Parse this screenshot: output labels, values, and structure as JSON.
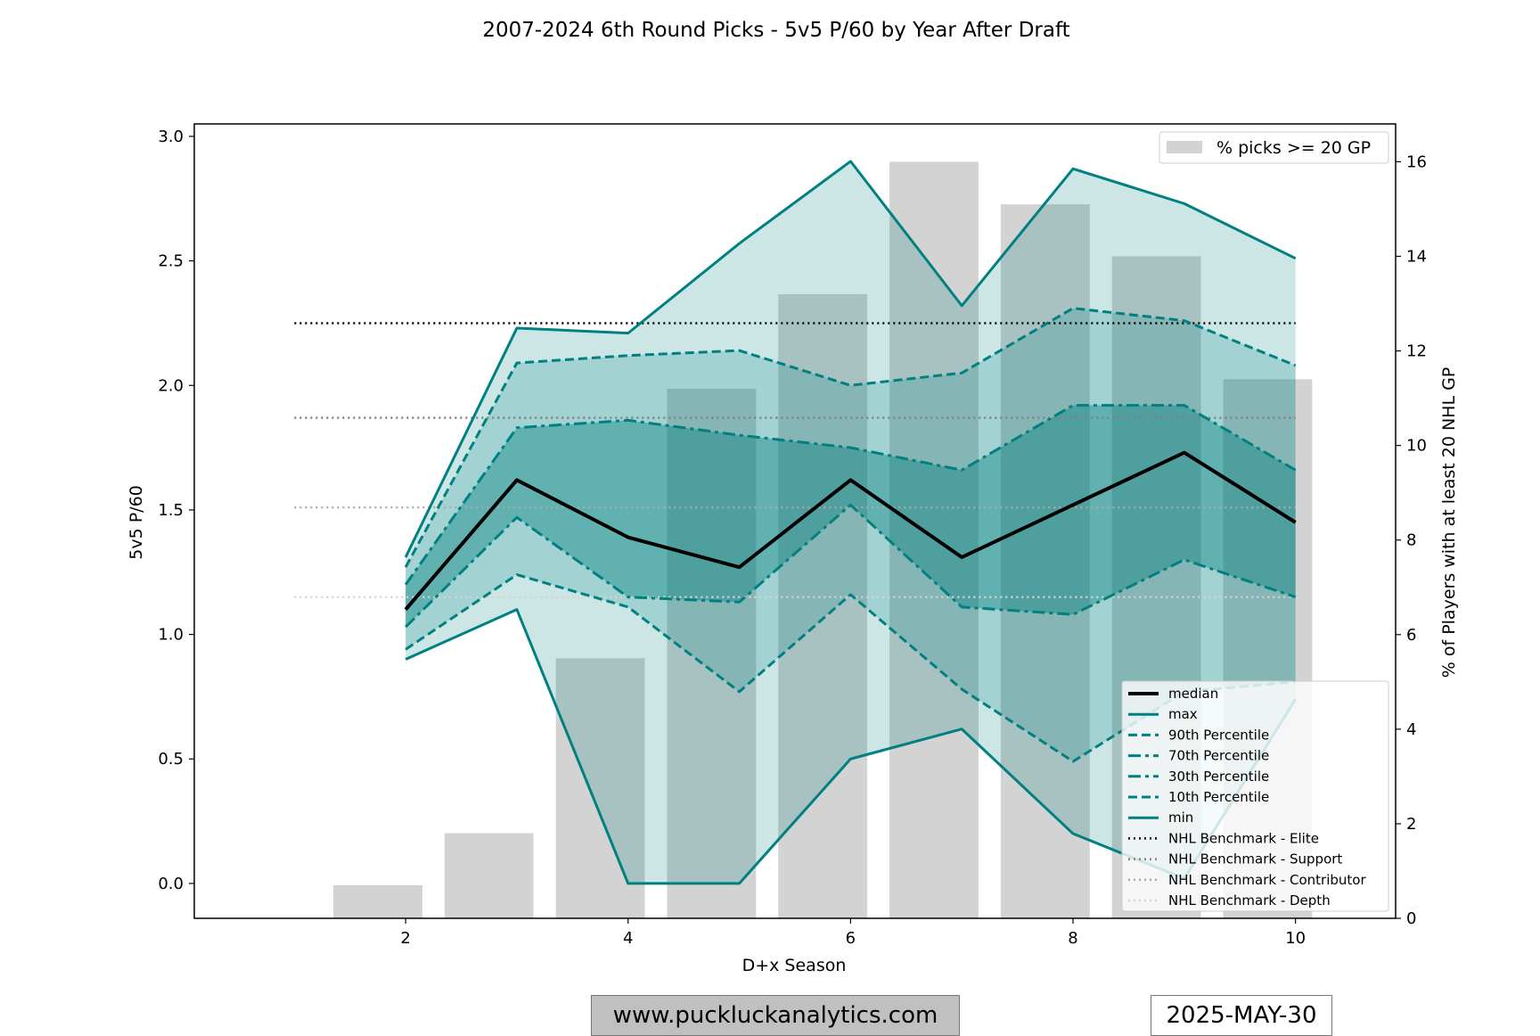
{
  "chart_data": {
    "type": "line",
    "title": "2007-2024 6th Round Picks - 5v5 P/60 by Year After Draft",
    "xlabel": "D+x Season",
    "ylabel": "5v5 P/60",
    "y2label": "% of Players with at least 20 NHL GP",
    "xlim": [
      0.1,
      10.9
    ],
    "ylim": [
      -0.14,
      3.05
    ],
    "y2lim": [
      0,
      16.8
    ],
    "xticks": [
      2,
      4,
      6,
      8,
      10
    ],
    "yticks": [
      0.0,
      0.5,
      1.0,
      1.5,
      2.0,
      2.5,
      3.0
    ],
    "y2ticks": [
      0,
      2,
      4,
      6,
      8,
      10,
      12,
      14,
      16
    ],
    "x": [
      2,
      3,
      4,
      5,
      6,
      7,
      8,
      9,
      10
    ],
    "series": [
      {
        "name": "median",
        "values": [
          1.1,
          1.62,
          1.39,
          1.27,
          1.62,
          1.31,
          1.52,
          1.73,
          1.45
        ],
        "color": "#000000",
        "style": "solid",
        "width": 4
      },
      {
        "name": "max",
        "values": [
          1.31,
          2.23,
          2.21,
          2.57,
          2.9,
          2.32,
          2.87,
          2.73,
          2.51
        ],
        "color": "#008080",
        "style": "solid",
        "width": 3
      },
      {
        "name": "90th Percentile",
        "values": [
          1.27,
          2.09,
          2.12,
          2.14,
          2.0,
          2.05,
          2.31,
          2.26,
          2.08
        ],
        "color": "#008080",
        "style": "dashed",
        "width": 3
      },
      {
        "name": "70th Percentile",
        "values": [
          1.2,
          1.83,
          1.86,
          1.8,
          1.75,
          1.66,
          1.92,
          1.92,
          1.66
        ],
        "color": "#008080",
        "style": "dashdot",
        "width": 3
      },
      {
        "name": "30th Percentile",
        "values": [
          1.03,
          1.47,
          1.15,
          1.13,
          1.52,
          1.11,
          1.08,
          1.3,
          1.15
        ],
        "color": "#008080",
        "style": "dashdot",
        "width": 3
      },
      {
        "name": "10th Percentile",
        "values": [
          0.94,
          1.24,
          1.11,
          0.77,
          1.16,
          0.78,
          0.49,
          0.77,
          0.81
        ],
        "color": "#008080",
        "style": "dashed",
        "width": 3
      },
      {
        "name": "min",
        "values": [
          0.9,
          1.1,
          0.0,
          0.0,
          0.5,
          0.62,
          0.2,
          0.02,
          0.74
        ],
        "color": "#008080",
        "style": "solid",
        "width": 3
      }
    ],
    "bands": [
      {
        "lower": "min",
        "upper": "max",
        "color": "#008080",
        "opacity": 0.2
      },
      {
        "lower": "10th Percentile",
        "upper": "90th Percentile",
        "color": "#008080",
        "opacity": 0.2
      },
      {
        "lower": "30th Percentile",
        "upper": "70th Percentile",
        "color": "#008080",
        "opacity": 0.4
      }
    ],
    "benchmarks": [
      {
        "name": "NHL Benchmark - Elite",
        "value": 2.25,
        "color": "#000000"
      },
      {
        "name": "NHL Benchmark - Support",
        "value": 1.87,
        "color": "#808080"
      },
      {
        "name": "NHL Benchmark - Contributor",
        "value": 1.51,
        "color": "#a9a9a9"
      },
      {
        "name": "NHL Benchmark - Depth",
        "value": 1.15,
        "color": "#d3d3d3"
      }
    ],
    "benchmark_x": [
      1,
      10
    ],
    "bars": {
      "name": "% picks >= 20 GP",
      "color": "#d3d3d3",
      "x": [
        1.75,
        2.75,
        3.75,
        4.75,
        5.75,
        6.75,
        7.75,
        8.75,
        9.75
      ],
      "values": [
        0.7,
        1.8,
        5.5,
        11.2,
        13.2,
        16.0,
        15.1,
        14.0,
        11.4
      ],
      "width": 0.8
    },
    "legend_main": "bottom-right",
    "legend_bars": "top-right",
    "grid": false
  },
  "footer": {
    "website": "www.puckluckanalytics.com",
    "date": "2025-MAY-30"
  }
}
